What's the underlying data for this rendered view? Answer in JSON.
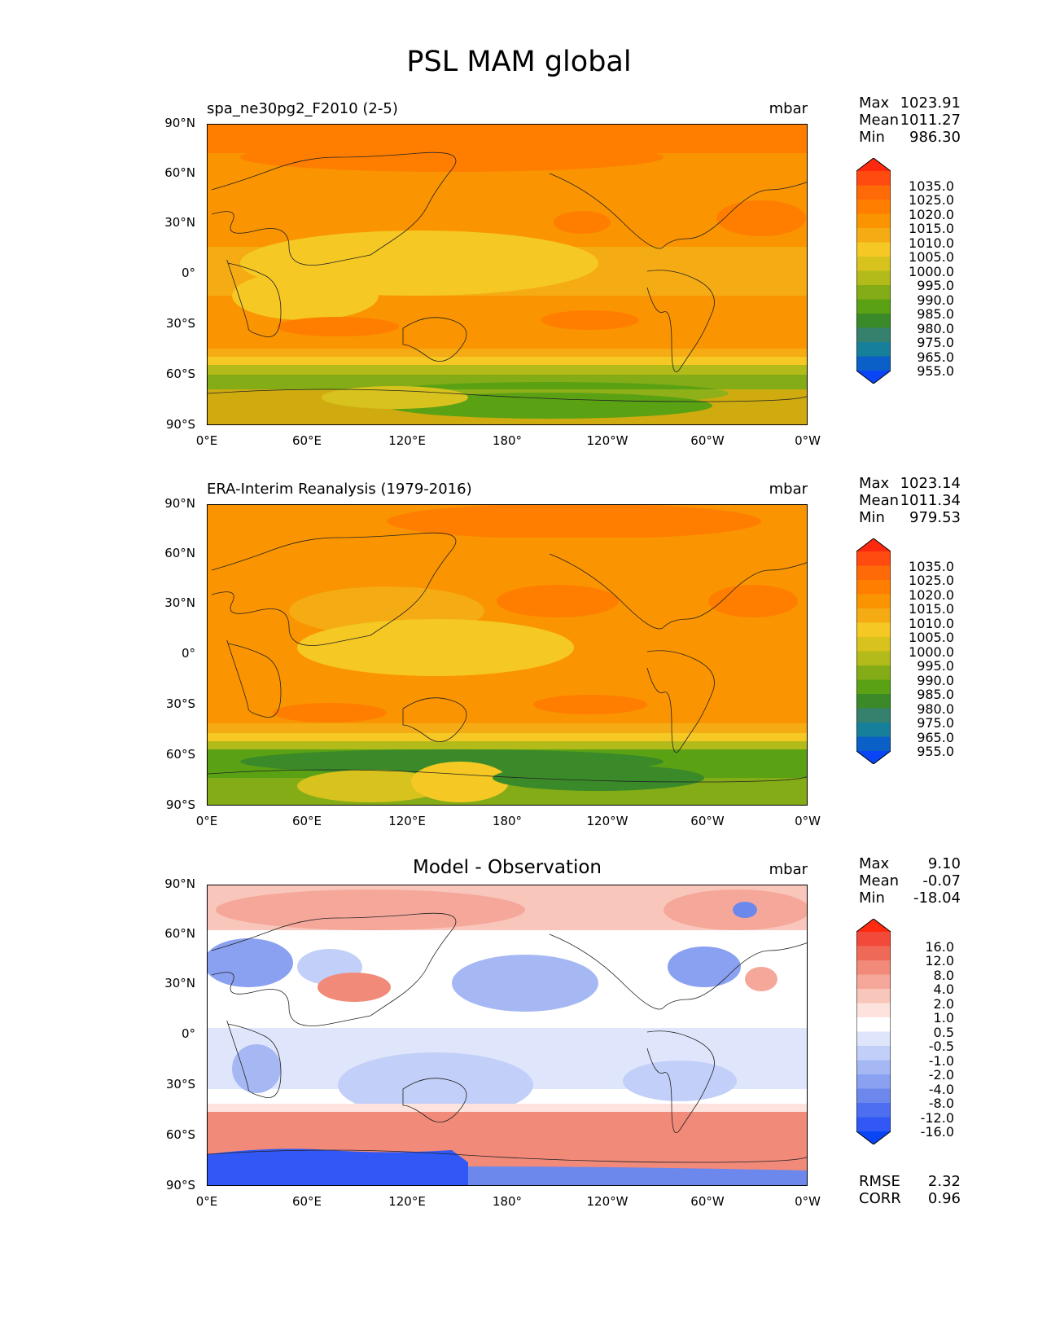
{
  "figure": {
    "title": "PSL MAM global"
  },
  "axes": {
    "lat_labels": [
      "90°N",
      "60°N",
      "30°N",
      "0°",
      "30°S",
      "60°S",
      "90°S"
    ],
    "lon_labels": [
      "0°E",
      "60°E",
      "120°E",
      "180°",
      "120°W",
      "60°W",
      "0°W"
    ]
  },
  "panels": [
    {
      "title": "spa_ne30pg2_F2010 (2-5)",
      "units": "mbar",
      "stats": {
        "max_label": "Max",
        "max": "1023.91",
        "mean_label": "Mean",
        "mean": "1011.27",
        "min_label": "Min",
        "min": "986.30"
      },
      "colorbar": {
        "levels": [
          "1035.0",
          "1025.0",
          "1020.0",
          "1015.0",
          "1010.0",
          "1005.0",
          "1000.0",
          "995.0",
          "990.0",
          "985.0",
          "980.0",
          "975.0",
          "965.0",
          "955.0"
        ],
        "colors": [
          "#fe2a10",
          "#ff4a10",
          "#ff6a08",
          "#ff7e00",
          "#fa9400",
          "#f5ab13",
          "#f5c823",
          "#d8c21d",
          "#b3bb1a",
          "#83ac17",
          "#5aa114",
          "#3a8a2a",
          "#36806e",
          "#167f9a",
          "#0b60c8",
          "#0a45f5"
        ]
      }
    },
    {
      "title": "ERA-Interim Reanalysis (1979-2016)",
      "units": "mbar",
      "stats": {
        "max_label": "Max",
        "max": "1023.14",
        "mean_label": "Mean",
        "mean": "1011.34",
        "min_label": "Min",
        "min": "979.53"
      },
      "colorbar": {
        "levels": [
          "1035.0",
          "1025.0",
          "1020.0",
          "1015.0",
          "1010.0",
          "1005.0",
          "1000.0",
          "995.0",
          "990.0",
          "985.0",
          "980.0",
          "975.0",
          "965.0",
          "955.0"
        ],
        "colors": [
          "#fe2a10",
          "#ff4a10",
          "#ff6a08",
          "#ff7e00",
          "#fa9400",
          "#f5ab13",
          "#f5c823",
          "#d8c21d",
          "#b3bb1a",
          "#83ac17",
          "#5aa114",
          "#3a8a2a",
          "#36806e",
          "#167f9a",
          "#0b60c8",
          "#0a45f5"
        ]
      }
    },
    {
      "title": "Model - Observation",
      "units": "mbar",
      "stats": {
        "max_label": "Max",
        "max": "9.10",
        "mean_label": "Mean",
        "mean": "-0.07",
        "min_label": "Min",
        "min": "-18.04"
      },
      "extra_stats": {
        "rmse_label": "RMSE",
        "rmse": "2.32",
        "corr_label": "CORR",
        "corr": "0.96"
      },
      "colorbar": {
        "levels": [
          "16.0",
          "12.0",
          "8.0",
          "4.0",
          "2.0",
          "1.0",
          "0.5",
          "-0.5",
          "-1.0",
          "-2.0",
          "-4.0",
          "-8.0",
          "-12.0",
          "-16.0"
        ],
        "colors": [
          "#ff2a10",
          "#f14a3a",
          "#ef6a56",
          "#f18a78",
          "#f5a89a",
          "#f9c6bc",
          "#fde3de",
          "#ffffff",
          "#dfe6fb",
          "#c2cff8",
          "#a6b8f4",
          "#8aa0f0",
          "#6c88ec",
          "#4d6ef0",
          "#3158f5",
          "#0a45f5"
        ]
      }
    }
  ]
}
